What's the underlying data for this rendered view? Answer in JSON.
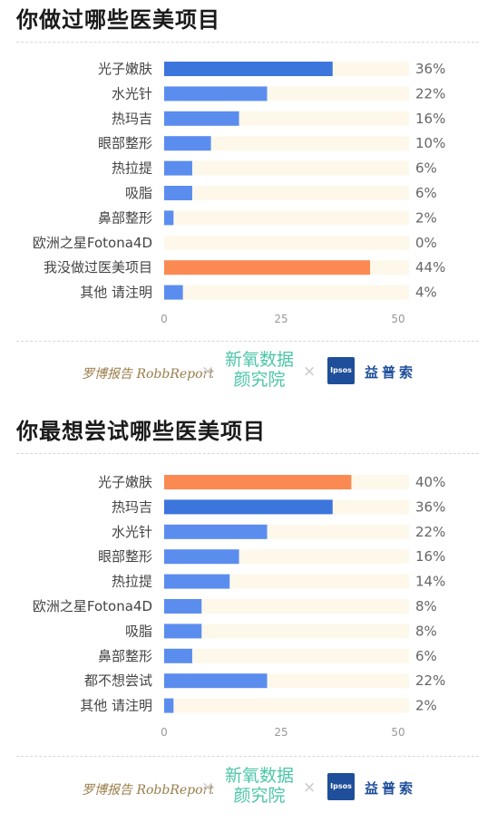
{
  "brand_footer": {
    "robb_text": "罗博报告 RobbReport",
    "separator": "×",
    "xinyang_line1": "新氧数据",
    "xinyang_line2": "颜究院",
    "ipsos_badge": "Ipsos",
    "yipu_text": "益普索"
  },
  "colors": {
    "bar_primary": "#5b8def",
    "bar_highlight_blue": "#3c75dc",
    "bar_highlight_orange": "#fb8a52",
    "track": "#fdf8ea"
  },
  "chart_data": [
    {
      "type": "bar",
      "orientation": "horizontal",
      "title": "你做过哪些医美项目",
      "categories": [
        "光子嫩肤",
        "水光针",
        "热玛吉",
        "眼部整形",
        "热拉提",
        "吸脂",
        "鼻部整形",
        "欧洲之星Fotona4D",
        "我没做过医美项目",
        "其他 请注明"
      ],
      "values": [
        36,
        22,
        16,
        10,
        6,
        6,
        2,
        0,
        44,
        4
      ],
      "value_labels": [
        "36%",
        "22%",
        "16%",
        "10%",
        "6%",
        "6%",
        "2%",
        "0%",
        "44%",
        "4%"
      ],
      "bar_colors": [
        "#3c75dc",
        "#5b8def",
        "#5b8def",
        "#5b8def",
        "#5b8def",
        "#5b8def",
        "#5b8def",
        "#5b8def",
        "#fb8a52",
        "#5b8def"
      ],
      "xticks": [
        0,
        25,
        50
      ],
      "xtick_labels": [
        "0",
        "25",
        "50"
      ],
      "xlim": [
        0,
        50
      ],
      "grid": false
    },
    {
      "type": "bar",
      "orientation": "horizontal",
      "title": "你最想尝试哪些医美项目",
      "categories": [
        "光子嫩肤",
        "热玛吉",
        "水光针",
        "眼部整形",
        "热拉提",
        "欧洲之星Fotona4D",
        "吸脂",
        "鼻部整形",
        "都不想尝试",
        "其他 请注明"
      ],
      "values": [
        40,
        36,
        22,
        16,
        14,
        8,
        8,
        6,
        22,
        2
      ],
      "value_labels": [
        "40%",
        "36%",
        "22%",
        "16%",
        "14%",
        "8%",
        "8%",
        "6%",
        "22%",
        "2%"
      ],
      "bar_colors": [
        "#fb8a52",
        "#3c75dc",
        "#5b8def",
        "#5b8def",
        "#5b8def",
        "#5b8def",
        "#5b8def",
        "#5b8def",
        "#5b8def",
        "#5b8def"
      ],
      "xticks": [
        0,
        25,
        50
      ],
      "xtick_labels": [
        "0",
        "25",
        "50"
      ],
      "xlim": [
        0,
        50
      ],
      "grid": false
    }
  ]
}
